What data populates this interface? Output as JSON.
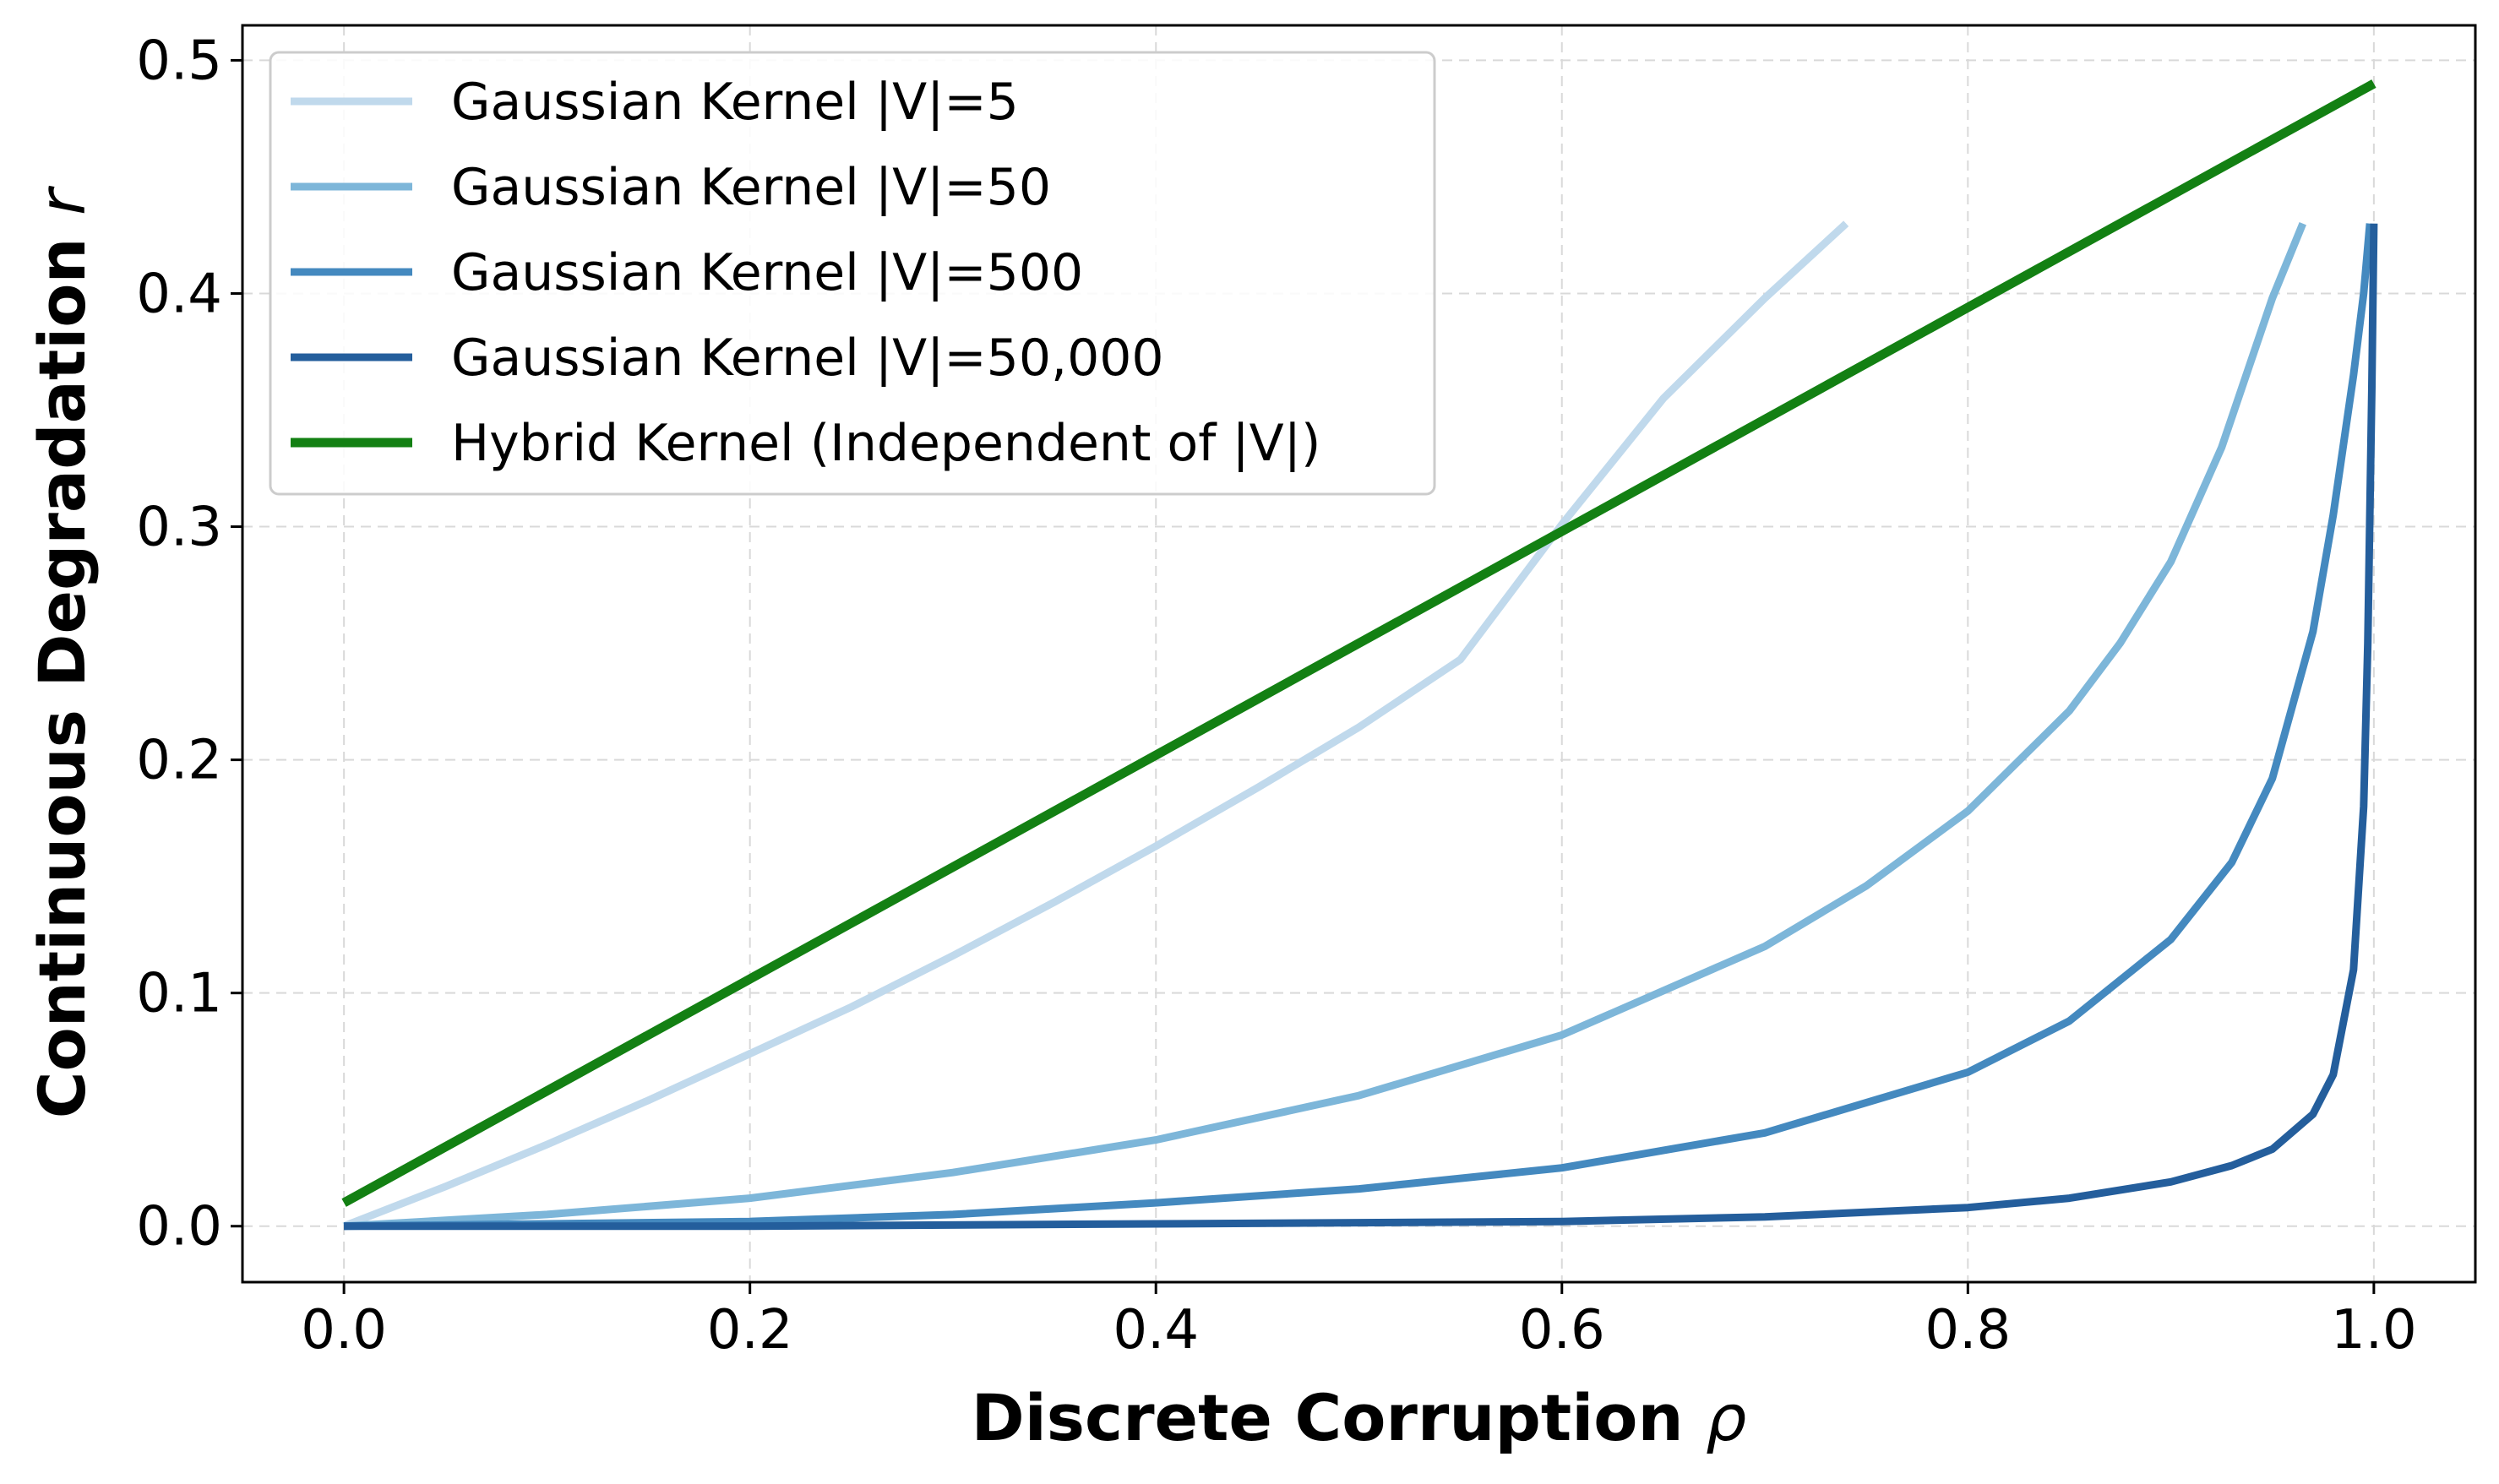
{
  "chart_data": {
    "type": "line",
    "title": "",
    "xlabel": "Discrete Corruption",
    "xlabel_symbol": "ρ",
    "ylabel": "Continuous Degradation",
    "ylabel_symbol": "r",
    "xlim": [
      -0.05,
      1.05
    ],
    "ylim": [
      -0.024,
      0.515
    ],
    "xticks": [
      0.0,
      0.2,
      0.4,
      0.6,
      0.8,
      1.0
    ],
    "xtick_labels": [
      "0.0",
      "0.2",
      "0.4",
      "0.6",
      "0.8",
      "1.0"
    ],
    "yticks": [
      0.0,
      0.1,
      0.2,
      0.3,
      0.4,
      0.5
    ],
    "ytick_labels": [
      "0.0",
      "0.1",
      "0.2",
      "0.3",
      "0.4",
      "0.5"
    ],
    "grid": true,
    "legend_position": "top-left",
    "series": [
      {
        "name": "Gaussian Kernel |V|=5",
        "color": "#c0d9ec",
        "x": [
          0.0,
          0.05,
          0.1,
          0.15,
          0.2,
          0.25,
          0.3,
          0.35,
          0.4,
          0.45,
          0.5,
          0.55,
          0.6,
          0.65,
          0.7,
          0.74
        ],
        "y": [
          0.0,
          0.017,
          0.035,
          0.054,
          0.074,
          0.094,
          0.116,
          0.139,
          0.163,
          0.188,
          0.214,
          0.243,
          0.301,
          0.355,
          0.398,
          0.43
        ]
      },
      {
        "name": "Gaussian Kernel |V|=50",
        "color": "#7db6d9",
        "x": [
          0.0,
          0.1,
          0.2,
          0.3,
          0.4,
          0.5,
          0.6,
          0.7,
          0.75,
          0.8,
          0.85,
          0.875,
          0.9,
          0.925,
          0.95,
          0.965
        ],
        "y": [
          0.0,
          0.005,
          0.012,
          0.023,
          0.037,
          0.056,
          0.082,
          0.12,
          0.146,
          0.178,
          0.221,
          0.25,
          0.285,
          0.334,
          0.398,
          0.43
        ]
      },
      {
        "name": "Gaussian Kernel |V|=500",
        "color": "#4489bf",
        "x": [
          0.0,
          0.1,
          0.2,
          0.3,
          0.4,
          0.5,
          0.6,
          0.7,
          0.8,
          0.85,
          0.9,
          0.93,
          0.95,
          0.97,
          0.98,
          0.99,
          0.995,
          0.998
        ],
        "y": [
          0.0,
          0.001,
          0.002,
          0.005,
          0.01,
          0.016,
          0.025,
          0.04,
          0.066,
          0.088,
          0.123,
          0.156,
          0.192,
          0.255,
          0.305,
          0.365,
          0.4,
          0.43
        ]
      },
      {
        "name": "Gaussian Kernel |V|=50,000",
        "color": "#245e9c",
        "x": [
          0.0,
          0.2,
          0.4,
          0.6,
          0.7,
          0.8,
          0.85,
          0.9,
          0.93,
          0.95,
          0.97,
          0.98,
          0.99,
          0.995,
          0.997,
          0.999,
          1.0
        ],
        "y": [
          0.0,
          0.0,
          0.001,
          0.002,
          0.004,
          0.008,
          0.012,
          0.019,
          0.026,
          0.033,
          0.048,
          0.065,
          0.11,
          0.18,
          0.25,
          0.36,
          0.43
        ]
      },
      {
        "name": "Hybrid Kernel (Independent of |V|)",
        "color": "#138013",
        "x": [
          0.0,
          1.0
        ],
        "y": [
          0.01,
          0.49
        ]
      }
    ]
  }
}
